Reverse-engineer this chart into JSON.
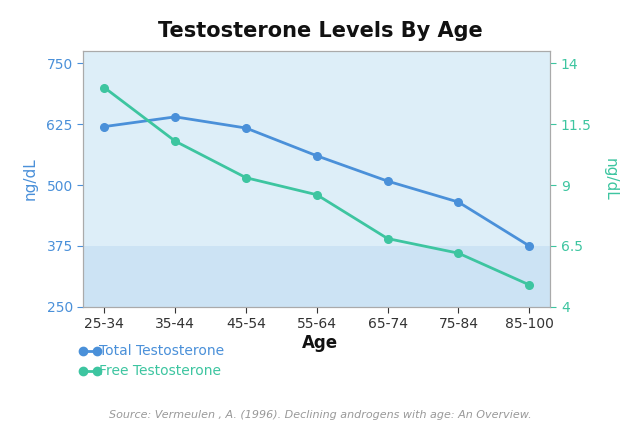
{
  "title": "Testosterone Levels By Age",
  "categories": [
    "25-34",
    "35-44",
    "45-54",
    "55-64",
    "65-74",
    "75-84",
    "85-100"
  ],
  "total_testosterone": [
    620,
    640,
    617,
    560,
    508,
    465,
    375
  ],
  "free_testosterone": [
    13.0,
    10.8,
    9.3,
    8.6,
    6.8,
    6.2,
    4.9
  ],
  "total_color": "#4A90D9",
  "free_color": "#3DC5A0",
  "left_ylabel": "ng/dL",
  "right_ylabel": "ng/dL",
  "xlabel": "Age",
  "left_ylim": [
    250,
    775
  ],
  "right_ylim": [
    4,
    14.5
  ],
  "left_yticks": [
    250,
    375,
    500,
    625,
    750
  ],
  "right_yticks": [
    4,
    6.5,
    9,
    11.5,
    14
  ],
  "bg_color_light": "#ddeef8",
  "bg_color_dark": "#cce3f4",
  "source_text": "Source: Vermeulen , A. (1996). Declining androgens with age: An Overview.",
  "title_fontsize": 15,
  "label_fontsize": 11,
  "tick_fontsize": 10,
  "legend_fontsize": 10,
  "source_fontsize": 8,
  "fig_width": 6.4,
  "fig_height": 4.26,
  "dpi": 100
}
